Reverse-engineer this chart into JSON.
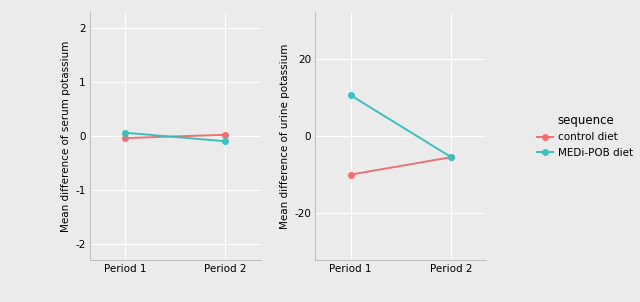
{
  "left_plot": {
    "ylabel": "Mean difference of serum potassium",
    "ylim": [
      -2.3,
      2.3
    ],
    "yticks": [
      -2,
      -1,
      0,
      1,
      2
    ],
    "control_diet": [
      -0.04,
      0.02
    ],
    "medi_pob_diet": [
      0.06,
      -0.1
    ],
    "xlabels": [
      "Period 1",
      "Period 2"
    ]
  },
  "right_plot": {
    "ylabel": "Mean difference of urine potassium",
    "ylim": [
      -32,
      32
    ],
    "yticks": [
      -20,
      0,
      20
    ],
    "control_diet": [
      -10.0,
      -5.5
    ],
    "medi_pob_diet": [
      10.5,
      -5.5
    ],
    "xlabels": [
      "Period 1",
      "Period 2"
    ]
  },
  "legend_title": "sequence",
  "legend_entries": [
    "control diet",
    "MEDi-POB diet"
  ],
  "color_control": "#F07070",
  "color_medi": "#3CBFBF",
  "bg_color": "#EBEBEB",
  "panel_bg": "#EBEBEB",
  "grid_color": "#FFFFFF",
  "line_width": 1.4,
  "marker": "o",
  "marker_size": 4
}
